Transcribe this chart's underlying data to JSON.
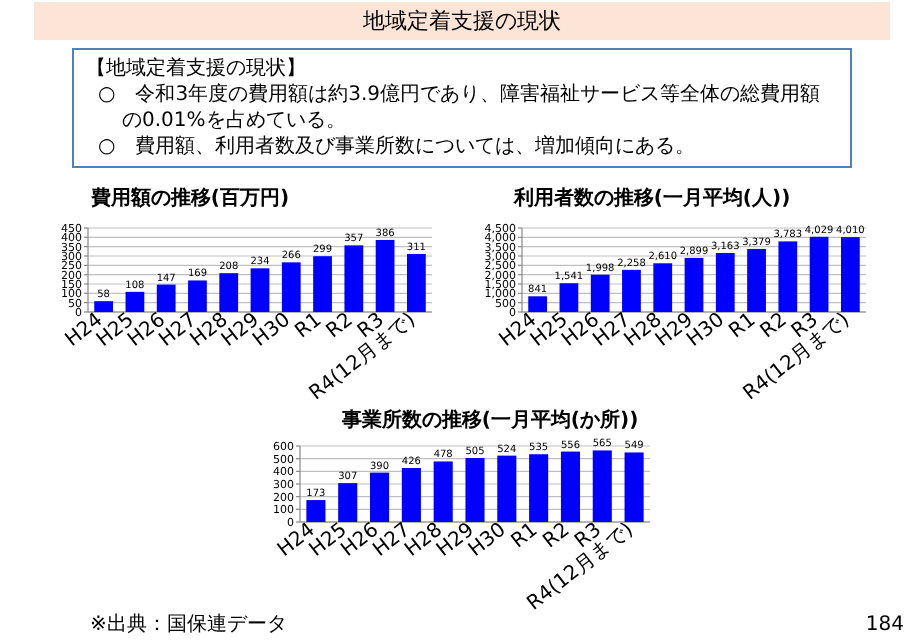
{
  "chart_data": [
    {
      "type": "other",
      "title": "地域定着支援の現状",
      "subtitle": "【地域定着支援の現状】",
      "annotations": [
        "○　令和3年度の費用額は約3.9億円であり、障害福祉サービス等全体の総費用額の0.01%を占めている。",
        "○　費用額、利用者数及び事業所数については、増加傾向にある。"
      ]
    },
    {
      "type": "bar",
      "title": "費用額の推移(百万円)",
      "categories": [
        "H24",
        "H25",
        "H26",
        "H27",
        "H28",
        "H29",
        "H30",
        "R1",
        "R2",
        "R3",
        "R4(12月まで)"
      ],
      "values": [
        58,
        108,
        147,
        169,
        208,
        234,
        266,
        299,
        357,
        386,
        311
      ],
      "color": "#0000ff",
      "data_labels": true,
      "grid": "y",
      "ylim": [
        0,
        450
      ],
      "yticks": [
        0,
        50,
        100,
        150,
        200,
        250,
        300,
        350,
        400,
        450
      ]
    },
    {
      "type": "bar",
      "title": "利用者数の推移(一月平均(人))",
      "categories": [
        "H24",
        "H25",
        "H26",
        "H27",
        "H28",
        "H29",
        "H30",
        "R1",
        "R2",
        "R3",
        "R4(12月まで)"
      ],
      "values": [
        841,
        1541,
        1998,
        2258,
        2610,
        2899,
        3163,
        3379,
        3783,
        4029,
        4010
      ],
      "value_labels": [
        "841",
        "1,541",
        "1,998",
        "2,258",
        "2,610",
        "2,899",
        "3,163",
        "3,379",
        "3,783",
        "4,029",
        "4,010"
      ],
      "color": "#0000ff",
      "grid": "y",
      "ylim": [
        0,
        4500
      ],
      "yticks": [
        0,
        {
          "value": 500,
          "label": "500"
        },
        {
          "value": 1000,
          "label": "1,000"
        },
        {
          "value": 1500,
          "label": "1,500"
        },
        {
          "value": 2000,
          "label": "2,000"
        },
        {
          "value": 2500,
          "label": "2,500"
        },
        {
          "value": 3000,
          "label": "3,000"
        },
        {
          "value": 3500,
          "label": "3,500"
        },
        {
          "value": 4000,
          "label": "4,000"
        },
        {
          "value": 4500,
          "label": "4,500"
        }
      ]
    },
    {
      "type": "bar",
      "title": "事業所数の推移(一月平均(か所))",
      "categories": [
        "H24",
        "H25",
        "H26",
        "H27",
        "H28",
        "H29",
        "H30",
        "R1",
        "R2",
        "R3",
        "R4(12月まで)"
      ],
      "values": [
        173,
        307,
        390,
        426,
        478,
        505,
        524,
        535,
        556,
        565,
        549
      ],
      "color": "#0000ff",
      "data_labels": true,
      "grid": "y",
      "ylim": [
        0,
        600
      ],
      "yticks": [
        0,
        100,
        200,
        300,
        400,
        500,
        600
      ],
      "annotations": [
        "※出典：国保連データ",
        "184"
      ]
    }
  ]
}
